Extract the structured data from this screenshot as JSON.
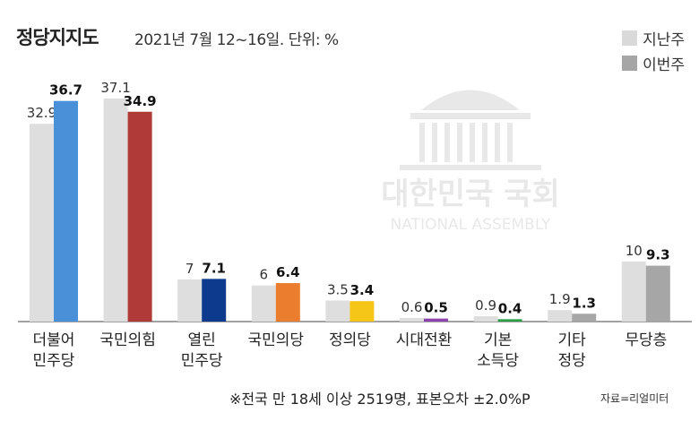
{
  "header": {
    "title": "정당지지도",
    "subtitle": "2021년 7월 12~16일. 단위: %"
  },
  "legend": [
    {
      "label": "지난주",
      "color": "#d9d9d9"
    },
    {
      "label": "이번주",
      "color": "#a6a6a6"
    }
  ],
  "watermark": {
    "line1": "대한민국 국회",
    "line2": "NATIONAL ASSEMBLY"
  },
  "footer": {
    "note": "※전국 만 18세 이상 2519명, 표본오차 ±2.0%P",
    "source": "자료=리얼미터"
  },
  "chart_data": {
    "type": "bar",
    "title": "정당지지도",
    "subtitle": "2021년 7월 12~16일. 단위: %",
    "ylim": [
      0,
      40
    ],
    "grid": false,
    "legend_position": "top-right",
    "categories": [
      [
        "더불어",
        "민주당"
      ],
      [
        "국민의힘"
      ],
      [
        "열린",
        "민주당"
      ],
      [
        "국민의당"
      ],
      [
        "정의당"
      ],
      [
        "시대전환"
      ],
      [
        "기본",
        "소득당"
      ],
      [
        "기타",
        "정당"
      ],
      [
        "무당층"
      ]
    ],
    "series": [
      {
        "name": "지난주",
        "values": [
          32.9,
          37.1,
          7,
          6,
          3.5,
          0.6,
          0.9,
          1.9,
          10
        ],
        "labels": [
          "32.9",
          "37.1",
          "7",
          "6",
          "3.5",
          "0.6",
          "0.9",
          "1.9",
          "10"
        ],
        "color": "#dedede"
      },
      {
        "name": "이번주",
        "values": [
          36.7,
          34.9,
          7.1,
          6.4,
          3.4,
          0.5,
          0.4,
          1.3,
          9.3
        ],
        "labels": [
          "36.7",
          "34.9",
          "7.1",
          "6.4",
          "3.4",
          "0.5",
          "0.4",
          "1.3",
          "9.3"
        ],
        "colors": [
          "#4a90d9",
          "#b03a38",
          "#0d3a8c",
          "#ea7d2e",
          "#f5c518",
          "#8e44ad",
          "#2ea04a",
          "#a6a6a6",
          "#a6a6a6"
        ]
      }
    ]
  }
}
